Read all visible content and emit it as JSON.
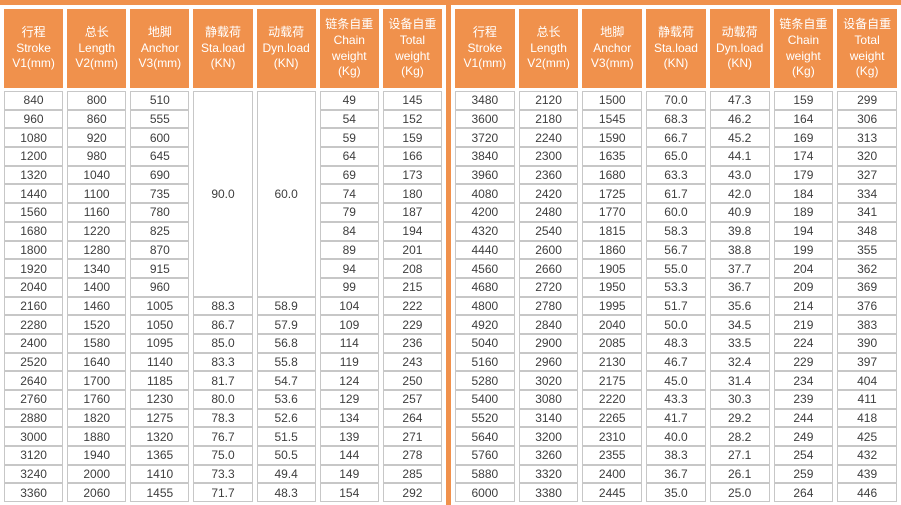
{
  "colors": {
    "accent": "#f0914c",
    "cell_border": "#c7c7c7",
    "cell_text": "#3e3e3e",
    "header_text": "#ffffff"
  },
  "headers": [
    {
      "key": "stroke",
      "lines": [
        "行程",
        "Stroke",
        "V1(mm)"
      ]
    },
    {
      "key": "length",
      "lines": [
        "总长",
        "Length",
        "V2(mm)"
      ]
    },
    {
      "key": "anchor",
      "lines": [
        "地脚",
        "Anchor",
        "V3(mm)"
      ]
    },
    {
      "key": "static-load",
      "lines": [
        "静载荷",
        "Sta.load",
        "(KN)"
      ]
    },
    {
      "key": "dynamic-load",
      "lines": [
        "动载荷",
        "Dyn.load",
        "(KN)"
      ]
    },
    {
      "key": "chain-weight",
      "lines": [
        "链条自重",
        "Chain",
        "weight",
        "(Kg)"
      ]
    },
    {
      "key": "total-weight",
      "lines": [
        "设备自重",
        "Total",
        "weight",
        "(Kg)"
      ]
    }
  ],
  "tables": {
    "left": {
      "merged": [
        {
          "row": 0,
          "col": 3,
          "rowspan": 11,
          "value": "90.0"
        },
        {
          "row": 0,
          "col": 4,
          "rowspan": 11,
          "value": "60.0"
        }
      ],
      "rows": [
        [
          "840",
          "800",
          "510",
          null,
          null,
          "49",
          "145"
        ],
        [
          "960",
          "860",
          "555",
          null,
          null,
          "54",
          "152"
        ],
        [
          "1080",
          "920",
          "600",
          null,
          null,
          "59",
          "159"
        ],
        [
          "1200",
          "980",
          "645",
          null,
          null,
          "64",
          "166"
        ],
        [
          "1320",
          "1040",
          "690",
          null,
          null,
          "69",
          "173"
        ],
        [
          "1440",
          "1100",
          "735",
          null,
          null,
          "74",
          "180"
        ],
        [
          "1560",
          "1160",
          "780",
          null,
          null,
          "79",
          "187"
        ],
        [
          "1680",
          "1220",
          "825",
          null,
          null,
          "84",
          "194"
        ],
        [
          "1800",
          "1280",
          "870",
          null,
          null,
          "89",
          "201"
        ],
        [
          "1920",
          "1340",
          "915",
          null,
          null,
          "94",
          "208"
        ],
        [
          "2040",
          "1400",
          "960",
          null,
          null,
          "99",
          "215"
        ],
        [
          "2160",
          "1460",
          "1005",
          "88.3",
          "58.9",
          "104",
          "222"
        ],
        [
          "2280",
          "1520",
          "1050",
          "86.7",
          "57.9",
          "109",
          "229"
        ],
        [
          "2400",
          "1580",
          "1095",
          "85.0",
          "56.8",
          "114",
          "236"
        ],
        [
          "2520",
          "1640",
          "1140",
          "83.3",
          "55.8",
          "119",
          "243"
        ],
        [
          "2640",
          "1700",
          "1185",
          "81.7",
          "54.7",
          "124",
          "250"
        ],
        [
          "2760",
          "1760",
          "1230",
          "80.0",
          "53.6",
          "129",
          "257"
        ],
        [
          "2880",
          "1820",
          "1275",
          "78.3",
          "52.6",
          "134",
          "264"
        ],
        [
          "3000",
          "1880",
          "1320",
          "76.7",
          "51.5",
          "139",
          "271"
        ],
        [
          "3120",
          "1940",
          "1365",
          "75.0",
          "50.5",
          "144",
          "278"
        ],
        [
          "3240",
          "2000",
          "1410",
          "73.3",
          "49.4",
          "149",
          "285"
        ],
        [
          "3360",
          "2060",
          "1455",
          "71.7",
          "48.3",
          "154",
          "292"
        ]
      ]
    },
    "right": {
      "merged": [],
      "rows": [
        [
          "3480",
          "2120",
          "1500",
          "70.0",
          "47.3",
          "159",
          "299"
        ],
        [
          "3600",
          "2180",
          "1545",
          "68.3",
          "46.2",
          "164",
          "306"
        ],
        [
          "3720",
          "2240",
          "1590",
          "66.7",
          "45.2",
          "169",
          "313"
        ],
        [
          "3840",
          "2300",
          "1635",
          "65.0",
          "44.1",
          "174",
          "320"
        ],
        [
          "3960",
          "2360",
          "1680",
          "63.3",
          "43.0",
          "179",
          "327"
        ],
        [
          "4080",
          "2420",
          "1725",
          "61.7",
          "42.0",
          "184",
          "334"
        ],
        [
          "4200",
          "2480",
          "1770",
          "60.0",
          "40.9",
          "189",
          "341"
        ],
        [
          "4320",
          "2540",
          "1815",
          "58.3",
          "39.8",
          "194",
          "348"
        ],
        [
          "4440",
          "2600",
          "1860",
          "56.7",
          "38.8",
          "199",
          "355"
        ],
        [
          "4560",
          "2660",
          "1905",
          "55.0",
          "37.7",
          "204",
          "362"
        ],
        [
          "4680",
          "2720",
          "1950",
          "53.3",
          "36.7",
          "209",
          "369"
        ],
        [
          "4800",
          "2780",
          "1995",
          "51.7",
          "35.6",
          "214",
          "376"
        ],
        [
          "4920",
          "2840",
          "2040",
          "50.0",
          "34.5",
          "219",
          "383"
        ],
        [
          "5040",
          "2900",
          "2085",
          "48.3",
          "33.5",
          "224",
          "390"
        ],
        [
          "5160",
          "2960",
          "2130",
          "46.7",
          "32.4",
          "229",
          "397"
        ],
        [
          "5280",
          "3020",
          "2175",
          "45.0",
          "31.4",
          "234",
          "404"
        ],
        [
          "5400",
          "3080",
          "2220",
          "43.3",
          "30.3",
          "239",
          "411"
        ],
        [
          "5520",
          "3140",
          "2265",
          "41.7",
          "29.2",
          "244",
          "418"
        ],
        [
          "5640",
          "3200",
          "2310",
          "40.0",
          "28.2",
          "249",
          "425"
        ],
        [
          "5760",
          "3260",
          "2355",
          "38.3",
          "27.1",
          "254",
          "432"
        ],
        [
          "5880",
          "3320",
          "2400",
          "36.7",
          "26.1",
          "259",
          "439"
        ],
        [
          "6000",
          "3380",
          "2445",
          "35.0",
          "25.0",
          "264",
          "446"
        ]
      ]
    }
  }
}
